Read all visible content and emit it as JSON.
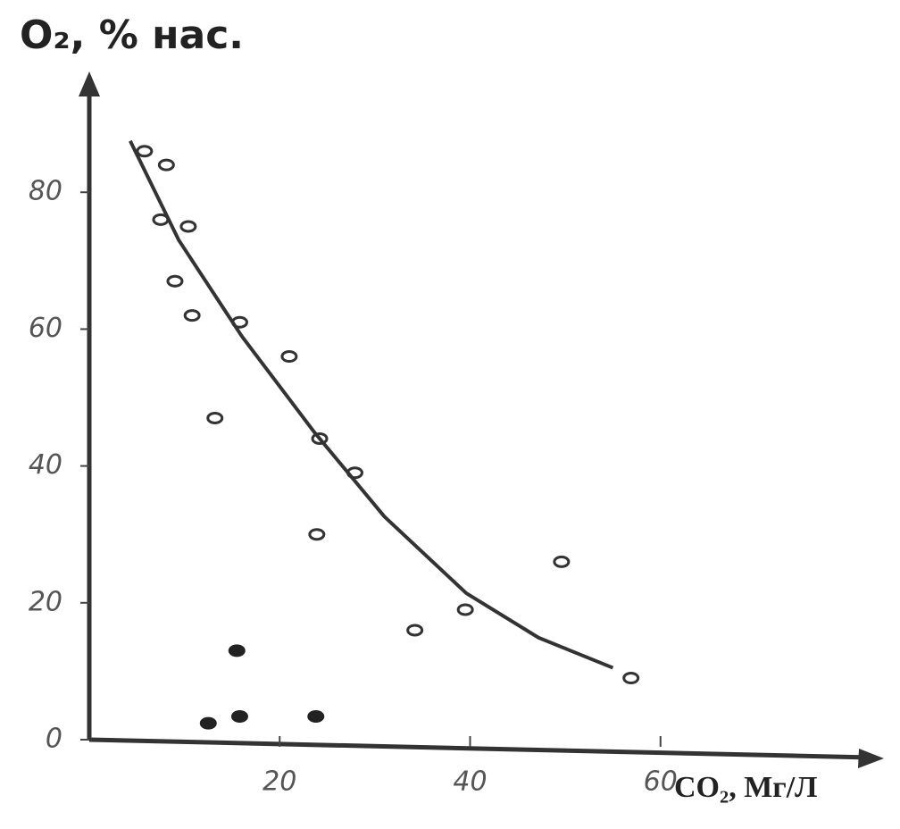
{
  "chart_data": {
    "type": "scatter",
    "y_label": "O₂, % нас.",
    "x_label": "CO₂, Мг/Л",
    "xlim": [
      0,
      83
    ],
    "ylim": [
      0,
      97
    ],
    "xticks": [
      20,
      40,
      60
    ],
    "yticks": [
      0,
      20,
      40,
      60,
      80
    ],
    "series": [
      {
        "marker": "open",
        "color": "#333",
        "x": [
          5.8,
          8.1,
          7.5,
          10.4,
          9,
          10.8,
          15.8,
          21,
          13.2,
          24.2,
          27.9,
          23.9,
          34.2,
          39.5,
          49.6,
          56.9
        ],
        "values": [
          86,
          84,
          76,
          75,
          67,
          62,
          61,
          56,
          47,
          44,
          39,
          30,
          16,
          19,
          26,
          9
        ]
      },
      {
        "marker": "filled",
        "color": "#222",
        "x": [
          15.5,
          12.5,
          15.8,
          23.8
        ],
        "values": [
          13,
          2.4,
          3.4,
          3.4
        ]
      },
      {
        "marker": "line",
        "color": "#333",
        "x": [
          4.3,
          9.4,
          16,
          23.6,
          31,
          39.6,
          47.2,
          55
        ],
        "values": [
          87.5,
          73,
          59,
          45,
          32.6,
          21.4,
          14.9,
          10.5
        ]
      }
    ]
  }
}
